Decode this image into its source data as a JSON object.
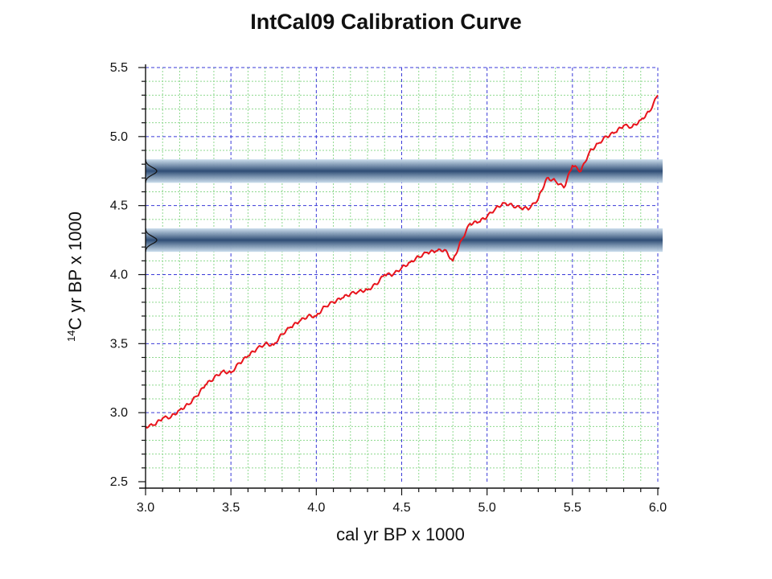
{
  "chart_data": {
    "type": "line",
    "title": "IntCal09 Calibration Curve",
    "xlabel": "cal yr BP x 1000",
    "ylabel_sup": "14",
    "ylabel_main": "C yr BP x 1000",
    "xlim": [
      3.0,
      6.0
    ],
    "ylim": [
      2.5,
      5.5
    ],
    "x_ticks": [
      "3.0",
      "3.5",
      "4.0",
      "4.5",
      "5.0",
      "5.5",
      "6.0"
    ],
    "y_ticks": [
      "2.5",
      "3.0",
      "3.5",
      "4.0",
      "4.5",
      "5.0",
      "5.5"
    ],
    "grid": true,
    "series": [
      {
        "color": "#e8141c",
        "x": [
          3.0,
          3.05,
          3.1,
          3.15,
          3.2,
          3.25,
          3.3,
          3.35,
          3.4,
          3.45,
          3.5,
          3.55,
          3.6,
          3.65,
          3.7,
          3.75,
          3.8,
          3.85,
          3.9,
          3.95,
          4.0,
          4.05,
          4.1,
          4.15,
          4.2,
          4.25,
          4.3,
          4.35,
          4.4,
          4.45,
          4.5,
          4.55,
          4.6,
          4.65,
          4.7,
          4.75,
          4.8,
          4.85,
          4.9,
          4.95,
          5.0,
          5.05,
          5.1,
          5.15,
          5.2,
          5.25,
          5.3,
          5.35,
          5.4,
          5.45,
          5.5,
          5.55,
          5.6,
          5.65,
          5.7,
          5.75,
          5.8,
          5.85,
          5.9,
          5.95,
          6.0
        ],
        "y": [
          2.9,
          2.91,
          2.96,
          2.97,
          3.02,
          3.06,
          3.12,
          3.2,
          3.25,
          3.3,
          3.29,
          3.36,
          3.41,
          3.46,
          3.5,
          3.49,
          3.57,
          3.62,
          3.66,
          3.7,
          3.7,
          3.77,
          3.8,
          3.83,
          3.86,
          3.88,
          3.89,
          3.93,
          4.0,
          4.0,
          4.05,
          4.09,
          4.13,
          4.16,
          4.17,
          4.18,
          4.1,
          4.25,
          4.37,
          4.38,
          4.42,
          4.48,
          4.52,
          4.5,
          4.48,
          4.48,
          4.55,
          4.7,
          4.68,
          4.63,
          4.79,
          4.75,
          4.89,
          4.95,
          5.0,
          5.03,
          5.08,
          5.07,
          5.12,
          5.18,
          5.3
        ]
      }
    ],
    "bands": [
      {
        "center": 4.75,
        "halfwidth": 0.085,
        "color": "#2f4d75"
      },
      {
        "center": 4.25,
        "halfwidth": 0.085,
        "color": "#2f4d75"
      }
    ]
  }
}
